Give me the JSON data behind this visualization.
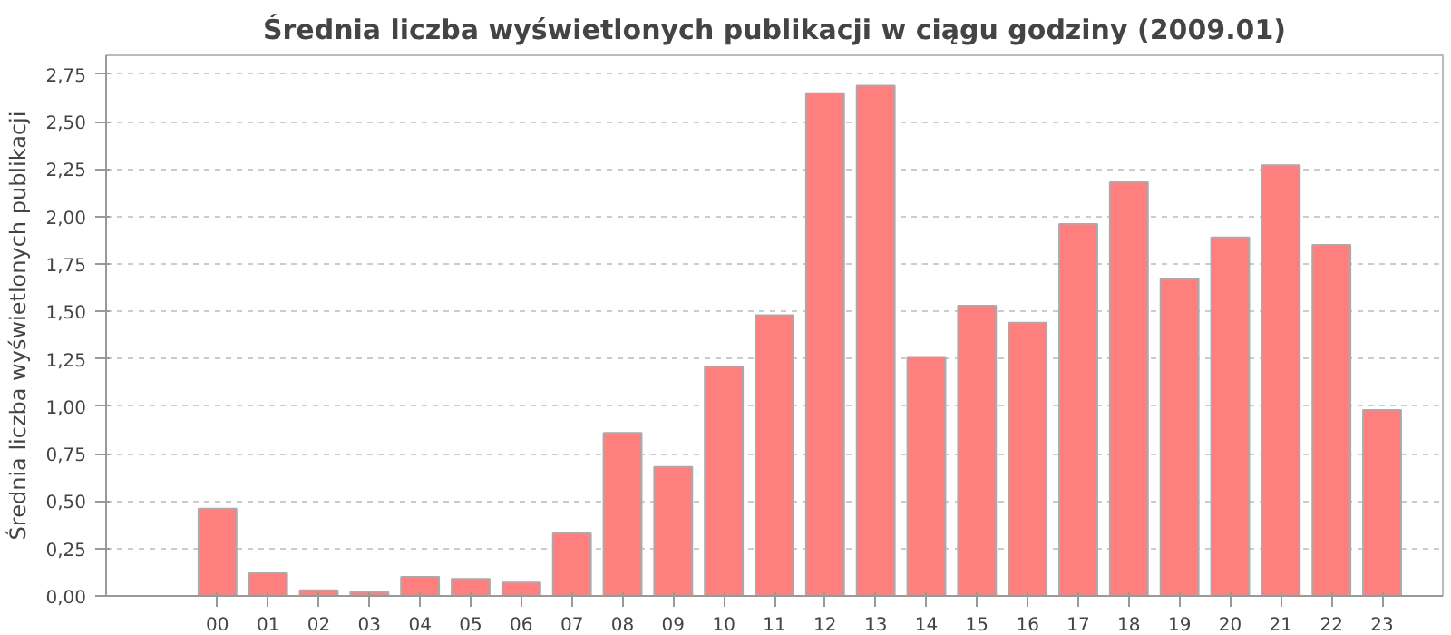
{
  "chart_data": {
    "type": "bar",
    "title": "Średnia liczba wyświetlonych publikacji w ciągu godziny (2009.01)",
    "ylabel": "Średnia liczba wyświetlonych publikacji",
    "categories": [
      "00",
      "01",
      "02",
      "03",
      "04",
      "05",
      "06",
      "07",
      "08",
      "09",
      "10",
      "11",
      "12",
      "13",
      "14",
      "15",
      "16",
      "17",
      "18",
      "19",
      "20",
      "21",
      "22",
      "23"
    ],
    "values": [
      0.46,
      0.12,
      0.03,
      0.02,
      0.1,
      0.09,
      0.07,
      0.33,
      0.86,
      0.68,
      1.21,
      1.48,
      2.65,
      2.69,
      1.26,
      1.53,
      1.44,
      1.96,
      2.18,
      1.67,
      1.89,
      2.27,
      1.85,
      0.98
    ],
    "color": "#ff7f7f",
    "ylim": [
      0,
      2.85
    ],
    "yticks": [
      {
        "value": 0,
        "label": "0,00"
      },
      {
        "value": 0.25,
        "label": "0,25"
      },
      {
        "value": 0.5,
        "label": "0,50"
      },
      {
        "value": 0.75,
        "label": "0,75"
      },
      {
        "value": 1,
        "label": "1,00"
      },
      {
        "value": 1.25,
        "label": "1,25"
      },
      {
        "value": 1.5,
        "label": "1,50"
      },
      {
        "value": 1.75,
        "label": "1,75"
      },
      {
        "value": 2,
        "label": "2,00"
      },
      {
        "value": 2.25,
        "label": "2,25"
      },
      {
        "value": 2.5,
        "label": "2,50"
      },
      {
        "value": 2.75,
        "label": "2,75"
      }
    ],
    "grid": "y"
  }
}
